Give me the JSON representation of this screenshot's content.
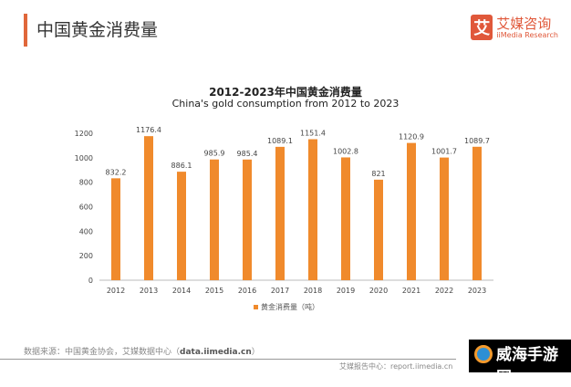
{
  "header": {
    "title": "中国黄金消费量",
    "logo_cn": "艾媒咨询",
    "logo_en": "iiMedia Research",
    "logo_mark": "艾"
  },
  "chart_data": {
    "type": "bar",
    "title": "2012-2023年中国黄金消费量",
    "subtitle": "China's gold consumption from 2012 to 2023",
    "categories": [
      "2012",
      "2013",
      "2014",
      "2015",
      "2016",
      "2017",
      "2018",
      "2019",
      "2020",
      "2021",
      "2022",
      "2023"
    ],
    "series": [
      {
        "name": "黄金消费量（吨）",
        "values": [
          832.2,
          1176.4,
          886.1,
          985.9,
          985.4,
          1089.1,
          1151.4,
          1002.8,
          821,
          1120.9,
          1001.7,
          1089.7
        ]
      }
    ],
    "value_labels": [
      "832.2",
      "1176.4",
      "886.1",
      "985.9",
      "985.4",
      "1089.1",
      "1151.4",
      "1002.8",
      "821",
      "1120.9",
      "1001.7",
      "1089.7"
    ],
    "ylim": [
      0,
      1200
    ],
    "yticks": [
      "0",
      "200",
      "400",
      "600",
      "800",
      "1000",
      "1200"
    ],
    "grid": false,
    "legend": "bottom",
    "color": "#f08a2c"
  },
  "footer": {
    "source_label": "数据来源：中国黄金协会，艾媒数据中心（",
    "source_link": "data.iimedia.cn",
    "source_end": "）",
    "report": "艾媒报告中心：report.iimedia.cn",
    "watermark": "威海手游网"
  }
}
